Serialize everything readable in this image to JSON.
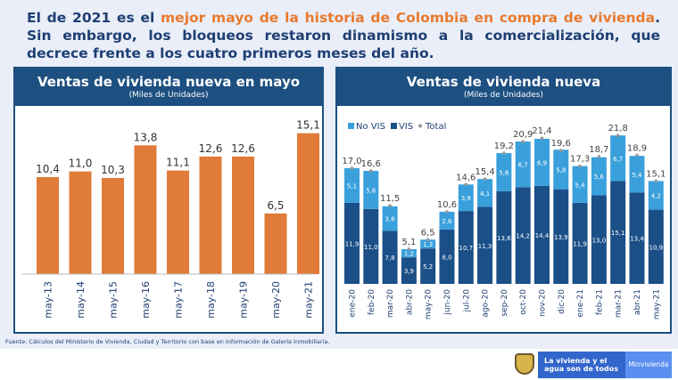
{
  "headline": {
    "pre": "El de 2021 es el ",
    "highlight": "mejor mayo de la historia de Colombia en compra de vivienda",
    "post": ". Sin embargo, los bloqueos restaron dinamismo a la comercialización, que decrece frente a los cuatro primeros meses del año."
  },
  "source": "Fuente: Cálculos del Ministerio de Vivienda, Ciudad y Territorio con base en información de Galería Inmobiliaria.",
  "footer": {
    "slogan": "La vivienda y el agua son de todos",
    "brand": "Minvivienda"
  },
  "colors": {
    "orange": "#e07b39",
    "vis": "#1b4f87",
    "novis": "#3aa0dc",
    "header": "#1d4f80"
  },
  "chart_data": [
    {
      "type": "bar",
      "title": "Ventas de vivienda nueva en mayo",
      "subtitle": "(Miles de Unidades)",
      "categories": [
        "may-13",
        "may-14",
        "may-15",
        "may-16",
        "may-17",
        "may-18",
        "may-19",
        "may-20",
        "may-21"
      ],
      "values": [
        10.4,
        11.0,
        10.3,
        13.8,
        11.1,
        12.6,
        12.6,
        6.5,
        15.1
      ],
      "labels": [
        "10,4",
        "11,0",
        "10,3",
        "13,8",
        "11,1",
        "12,6",
        "12,6",
        "6,5",
        "15,1"
      ],
      "ylim": [
        0,
        16.5
      ]
    },
    {
      "type": "bar",
      "stacked": true,
      "title": "Ventas de vivienda nueva",
      "subtitle": "(Miles de Unidades)",
      "legend_position": "top-left",
      "legend": [
        "No VIS",
        "VIS",
        "Total"
      ],
      "categories": [
        "ene-20",
        "feb-20",
        "mar-20",
        "abr-20",
        "may-20",
        "jun-20",
        "jul-20",
        "ago-20",
        "sep-20",
        "oct-20",
        "nov-20",
        "dic-20",
        "ene-21",
        "feb-21",
        "mar-21",
        "abr-21",
        "may-21"
      ],
      "series": [
        {
          "name": "VIS",
          "values": [
            11.9,
            11.0,
            7.8,
            3.9,
            5.2,
            8.0,
            10.7,
            11.3,
            13.6,
            14.2,
            14.4,
            13.9,
            11.9,
            13.0,
            15.1,
            13.4,
            10.9
          ]
        },
        {
          "name": "No VIS",
          "values": [
            5.1,
            5.6,
            3.6,
            1.2,
            1.3,
            2.6,
            3.9,
            4.1,
            5.6,
            6.7,
            6.9,
            5.8,
            5.4,
            5.6,
            6.7,
            5.4,
            4.2
          ]
        },
        {
          "name": "Total",
          "values": [
            17.0,
            16.6,
            11.5,
            5.1,
            6.5,
            10.6,
            14.6,
            15.4,
            19.2,
            20.9,
            21.4,
            19.6,
            17.3,
            18.7,
            21.8,
            18.9,
            15.1
          ]
        }
      ],
      "ylim": [
        0,
        23
      ]
    }
  ]
}
